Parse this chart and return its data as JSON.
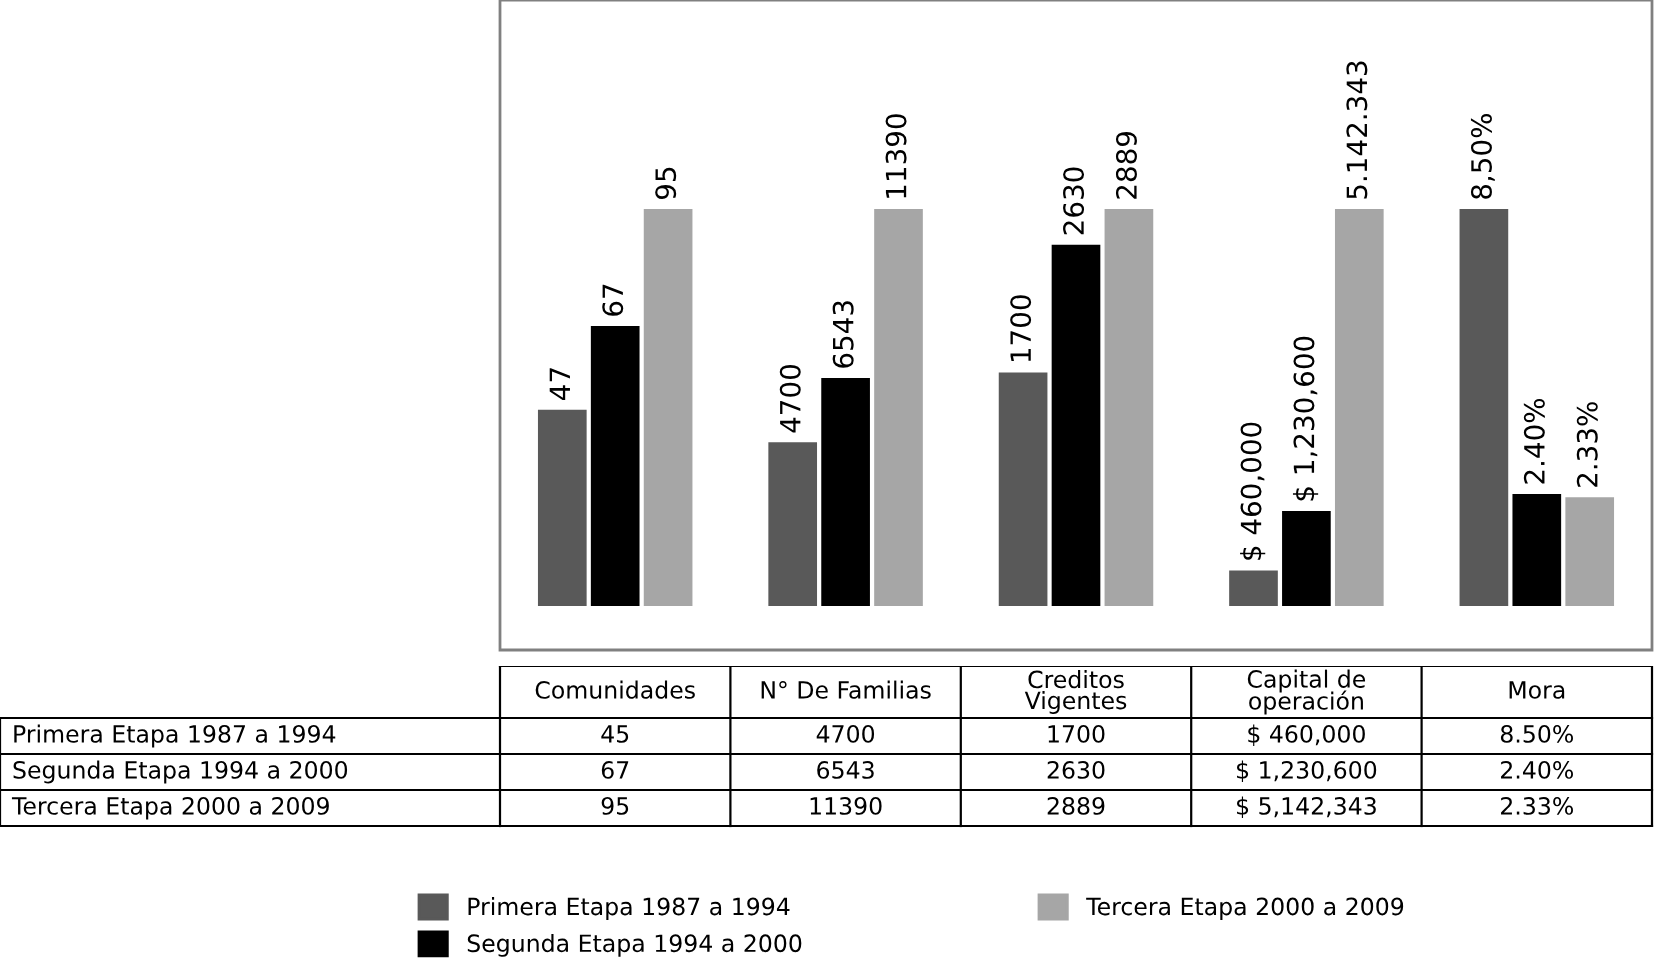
{
  "chart_data": [
    {
      "type": "bar",
      "categories": [
        null
      ],
      "tick_labels": false,
      "legend": "bottom",
      "series": [
        {
          "name": "Primera Etapa 1987 a 1994",
          "color": "#595959",
          "values": [
            47
          ],
          "value_labels": [
            "47"
          ]
        },
        {
          "name": "Segunda Etapa 1994 a 2000",
          "color": "#000000",
          "values": [
            67
          ],
          "value_labels": [
            "67"
          ]
        },
        {
          "name": "Tercera Etapa 2000 a 2009",
          "color": "#a6a6a6",
          "values": [
            95
          ],
          "value_labels": [
            "95"
          ]
        }
      ]
    },
    {
      "type": "bar",
      "categories": [
        null
      ],
      "tick_labels": false,
      "series": [
        {
          "color": "#595959",
          "values": [
            4700
          ],
          "value_labels": [
            "4700"
          ]
        },
        {
          "color": "#000000",
          "values": [
            6543
          ],
          "value_labels": [
            "6543"
          ]
        },
        {
          "color": "#a6a6a6",
          "values": [
            11390
          ],
          "value_labels": [
            "11390"
          ]
        }
      ]
    },
    {
      "type": "bar",
      "categories": [
        null
      ],
      "tick_labels": false,
      "series": [
        {
          "color": "#595959",
          "values": [
            1700
          ],
          "value_labels": [
            "1700"
          ]
        },
        {
          "color": "#000000",
          "values": [
            2630
          ],
          "value_labels": [
            "2630"
          ]
        },
        {
          "color": "#a6a6a6",
          "values": [
            2889
          ],
          "value_labels": [
            "2889"
          ]
        }
      ]
    },
    {
      "type": "bar",
      "categories": [
        null
      ],
      "tick_labels": false,
      "series": [
        {
          "color": "#595959",
          "values": [
            460000
          ],
          "value_labels": [
            "$ 460,000"
          ]
        },
        {
          "color": "#000000",
          "values": [
            1230600
          ],
          "value_labels": [
            "$ 1,230,600"
          ]
        },
        {
          "color": "#a6a6a6",
          "values": [
            5142343
          ],
          "value_labels": [
            "5.142.343"
          ]
        }
      ]
    },
    {
      "type": "bar",
      "categories": [
        null
      ],
      "tick_labels": false,
      "series": [
        {
          "color": "#595959",
          "values": [
            8.5
          ],
          "value_labels": [
            "8,50%"
          ]
        },
        {
          "color": "#000000",
          "values": [
            2.4
          ],
          "value_labels": [
            "2.40%"
          ]
        },
        {
          "color": "#a6a6a6",
          "values": [
            2.33
          ],
          "value_labels": [
            "2.33%"
          ]
        }
      ]
    },
    {
      "type": "other",
      "categories": [
        null,
        "Comunidades",
        "N° De Familias",
        "Creditos\nVigentes",
        "Capital de\noperación",
        "Mora"
      ],
      "cell_labels": [
        [
          "45",
          "4700",
          "1700",
          "$ 460,000",
          "8.50%"
        ],
        [
          "67",
          "6543",
          "2630",
          "$ 1,230,600",
          "2.40%"
        ],
        [
          "95",
          "11390",
          "2889",
          "$ 5,142,343",
          "2.33%"
        ]
      ]
    }
  ]
}
